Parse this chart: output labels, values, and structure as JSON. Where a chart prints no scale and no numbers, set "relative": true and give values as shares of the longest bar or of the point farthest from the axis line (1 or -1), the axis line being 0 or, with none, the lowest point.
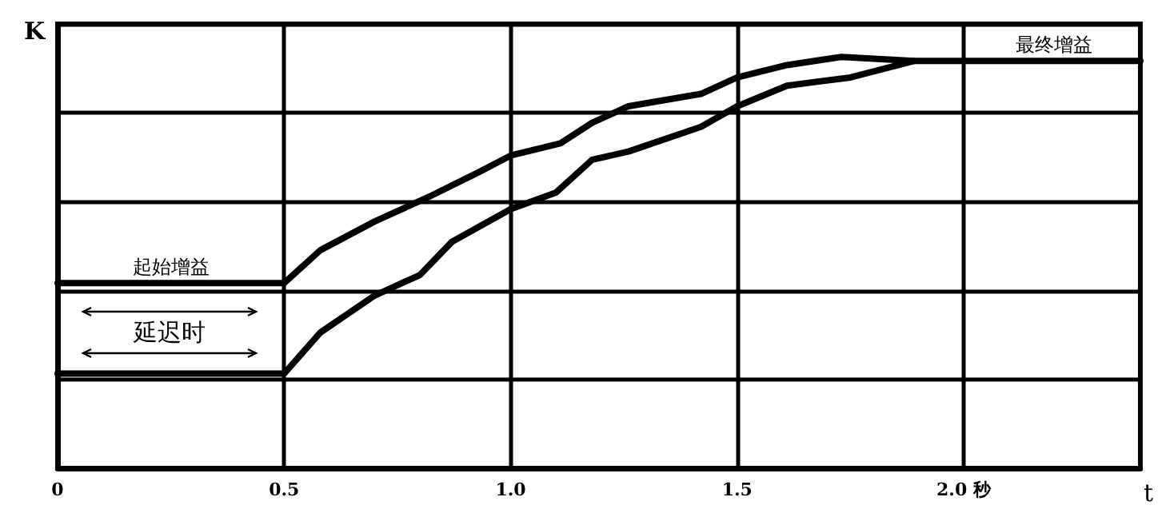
{
  "chart_data": {
    "type": "line",
    "relative": true,
    "xlabel": "t",
    "ylabel": "K",
    "xlim": [
      0,
      2.39
    ],
    "xticks": [
      0,
      0.5,
      {
        "value": 1,
        "label": "1.0"
      },
      1.5,
      {
        "value": 2,
        "label": "2.0 秒"
      }
    ],
    "grid": true,
    "marker": "none",
    "line_style": "solid",
    "series": [
      {
        "color": "#000000",
        "x": [
          0,
          0.5,
          0.58,
          0.7,
          0.82,
          0.93,
          1.0,
          1.11,
          1.18,
          1.26,
          1.42,
          1.5,
          1.61,
          1.73,
          1.89,
          2.39
        ],
        "values": [
          0.45,
          0.45,
          0.53,
          0.6,
          0.66,
          0.72,
          0.76,
          0.79,
          0.84,
          0.88,
          0.91,
          0.95,
          0.98,
          1,
          0.99,
          0.99
        ]
      },
      {
        "color": "#000000",
        "x": [
          0,
          0.5,
          0.58,
          0.7,
          0.8,
          0.87,
          1.0,
          1.1,
          1.18,
          1.26,
          1.42,
          1.5,
          1.61,
          1.75,
          1.89
        ],
        "values": [
          0.23,
          0.23,
          0.33,
          0.42,
          0.47,
          0.55,
          0.63,
          0.67,
          0.75,
          0.77,
          0.83,
          0.88,
          0.93,
          0.95,
          0.99
        ]
      }
    ],
    "annotations": [
      {
        "text": "起始增益",
        "x": 0.25,
        "y": 0.45
      },
      "延迟时",
      {
        "text": "最终增益",
        "x": 2.2,
        "y": 0.99
      }
    ]
  }
}
